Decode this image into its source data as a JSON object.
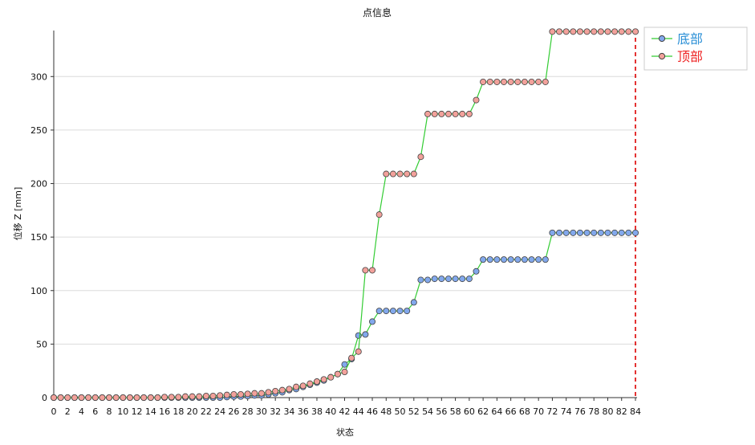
{
  "chart_data": {
    "type": "line",
    "title": "点信息",
    "xlabel": "状态",
    "ylabel": "位移 Z [mm]",
    "xlim": [
      0,
      84
    ],
    "ylim": [
      0,
      343
    ],
    "x_ticks": [
      0,
      2,
      4,
      6,
      8,
      10,
      12,
      14,
      16,
      18,
      20,
      22,
      24,
      26,
      28,
      30,
      32,
      34,
      36,
      38,
      40,
      42,
      44,
      46,
      48,
      50,
      52,
      54,
      56,
      58,
      60,
      62,
      64,
      66,
      68,
      70,
      72,
      74,
      76,
      78,
      80,
      82,
      84
    ],
    "y_ticks": [
      0,
      50,
      100,
      150,
      200,
      250,
      300
    ],
    "grid": "horizontal",
    "legend_position": "top-right",
    "line_color": "#33cc33",
    "marker_stroke": "#404040",
    "marker_edge": "#999999",
    "vline": {
      "x": 84,
      "color": "#dd0000",
      "style": "dashed"
    },
    "series": [
      {
        "name": "底部",
        "marker_color": "#82a8ec",
        "legend_text_color": "#2a8fd6",
        "values": [
          0,
          0,
          0,
          0,
          0,
          0,
          0,
          0,
          0,
          0,
          0,
          0,
          0,
          0,
          0,
          0,
          0,
          0,
          0,
          0,
          0,
          0,
          0,
          0,
          0,
          0.5,
          1,
          1,
          1.5,
          2,
          2,
          3,
          4,
          5,
          7,
          8,
          10,
          12,
          14,
          16,
          19,
          22,
          31,
          36,
          58,
          59,
          71,
          81,
          81,
          81,
          81,
          81,
          89,
          110,
          110,
          111,
          111,
          111,
          111,
          111,
          111,
          118,
          129,
          129,
          129,
          129,
          129,
          129,
          129,
          129,
          129,
          129,
          154,
          154,
          154,
          154,
          154,
          154,
          154,
          154,
          154,
          154,
          154,
          154,
          154
        ]
      },
      {
        "name": "顶部",
        "marker_color": "#f2a19b",
        "legend_text_color": "#ee2222",
        "values": [
          0,
          0,
          0,
          0,
          0,
          0,
          0,
          0,
          0,
          0,
          0,
          0,
          0,
          0,
          0,
          0,
          0.5,
          0.5,
          0.5,
          1,
          1,
          1,
          1.5,
          1.5,
          2,
          2.5,
          3,
          3,
          3.5,
          4,
          4,
          5,
          6,
          7,
          8,
          10,
          11,
          13,
          15,
          17,
          19,
          22,
          24,
          37,
          43,
          119,
          119,
          171,
          209,
          209,
          209,
          209,
          209,
          225,
          265,
          265,
          265,
          265,
          265,
          265,
          265,
          278,
          295,
          295,
          295,
          295,
          295,
          295,
          295,
          295,
          295,
          295,
          342,
          342,
          342,
          342,
          342,
          342,
          342,
          342,
          342,
          342,
          342,
          342,
          342
        ]
      }
    ]
  }
}
